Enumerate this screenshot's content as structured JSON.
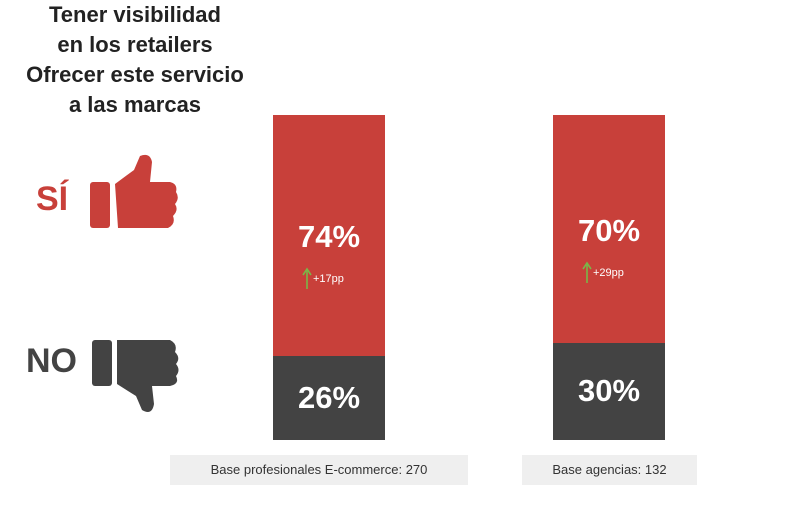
{
  "chart_data": {
    "type": "stacked_bar",
    "categories": [
      "Tener visibilidad en los retailers",
      "Ofrecer este servicio a las marcas"
    ],
    "series": [
      {
        "name": "SÍ",
        "color": "#c8403a",
        "values": [
          74,
          70
        ],
        "value_labels": [
          "74%",
          "70%"
        ]
      },
      {
        "name": "NO",
        "color": "#434343",
        "values": [
          26,
          30
        ],
        "value_labels": [
          "26%",
          "30%"
        ]
      }
    ],
    "annotations": [
      "+17pp",
      "+29pp"
    ],
    "annotation_color": "#7ab648",
    "notes": [
      "Base profesionales E-commerce: 270",
      "Base agencias: 132"
    ]
  }
}
